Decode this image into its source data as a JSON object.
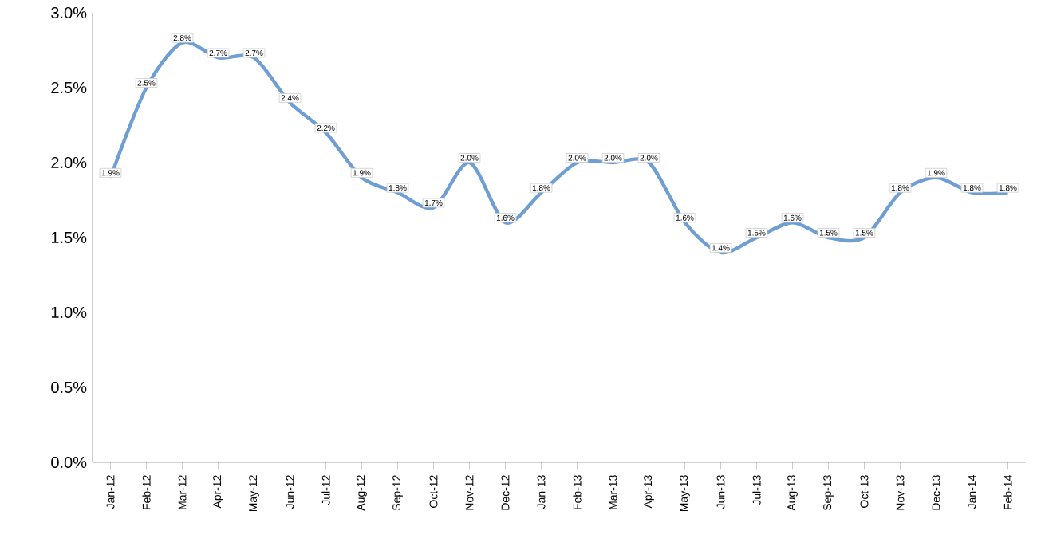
{
  "chart_data": {
    "type": "line",
    "categories": [
      "Jan-12",
      "Feb-12",
      "Mar-12",
      "Apr-12",
      "May-12",
      "Jun-12",
      "Jul-12",
      "Aug-12",
      "Sep-12",
      "Oct-12",
      "Nov-12",
      "Dec-12",
      "Jan-13",
      "Feb-13",
      "Mar-13",
      "Apr-13",
      "May-13",
      "Jun-13",
      "Jul-13",
      "Aug-13",
      "Sep-13",
      "Oct-13",
      "Nov-13",
      "Dec-13",
      "Jan-14",
      "Feb-14"
    ],
    "series": [
      {
        "color": "#6f9fd2",
        "values": [
          1.9,
          2.5,
          2.8,
          2.7,
          2.7,
          2.4,
          2.2,
          1.9,
          1.8,
          1.7,
          2.0,
          1.6,
          1.8,
          2.0,
          2.0,
          2.0,
          1.6,
          1.4,
          1.5,
          1.6,
          1.5,
          1.5,
          1.8,
          1.9,
          1.8,
          1.8
        ],
        "value_labels": [
          "1.9%",
          "2.5%",
          "2.8%",
          "2.7%",
          "2.7%",
          "2.4%",
          "2.2%",
          "1.9%",
          "1.8%",
          "1.7%",
          "2.0%",
          "1.6%",
          "1.8%",
          "2.0%",
          "2.0%",
          "2.0%",
          "1.6%",
          "1.4%",
          "1.5%",
          "1.6%",
          "1.5%",
          "1.5%",
          "1.8%",
          "1.9%",
          "1.8%",
          "1.8%"
        ]
      }
    ],
    "ylim": [
      0,
      3.0
    ],
    "yticks": [
      {
        "value": 0,
        "label": "0.0%"
      },
      {
        "value": 0.5,
        "label": "0.5%"
      },
      {
        "value": 1.0,
        "label": "1.0%"
      },
      {
        "value": 1.5,
        "label": "1.5%"
      },
      {
        "value": 2.0,
        "label": "2.0%"
      },
      {
        "value": 2.5,
        "label": "2.5%"
      },
      {
        "value": 3.0,
        "label": "3.0%"
      }
    ],
    "grid": false,
    "marker": "none",
    "line_style": "solid"
  }
}
